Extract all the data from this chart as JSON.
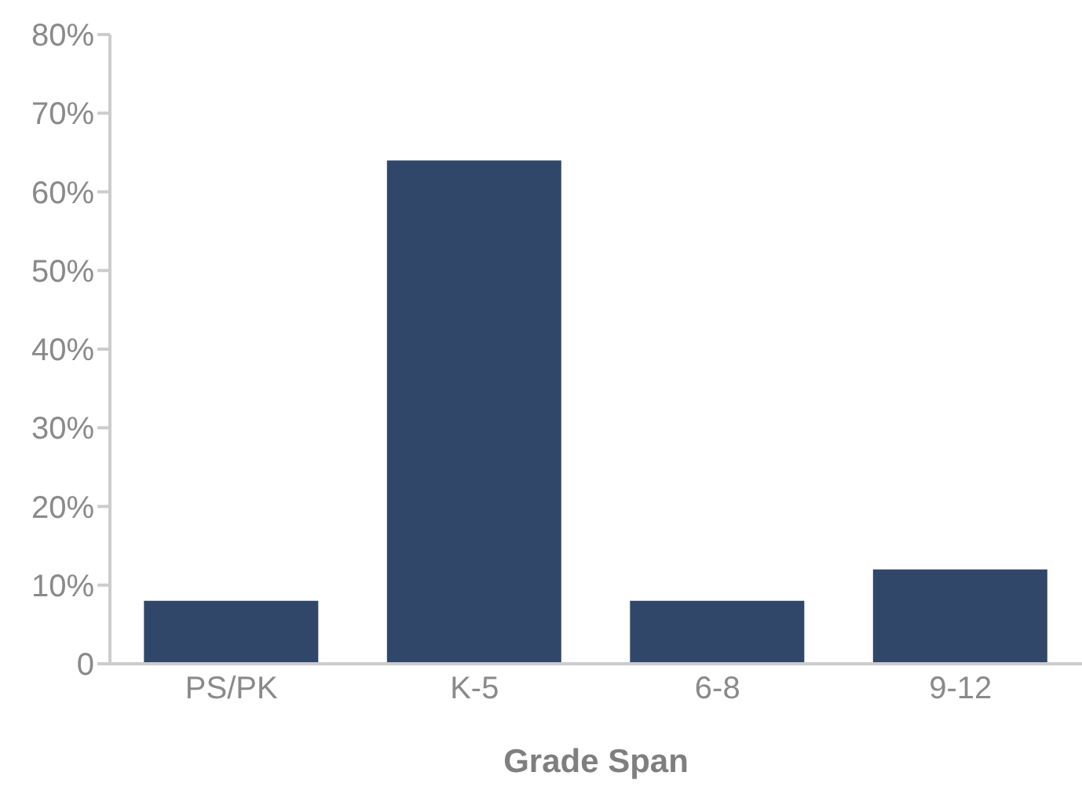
{
  "chart_data": {
    "type": "bar",
    "xlabel": "Grade Span",
    "categories": [
      "PS/PK",
      "K-5",
      "6-8",
      "9-12"
    ],
    "values": [
      8,
      64,
      8,
      12
    ],
    "color": "#31476a",
    "ylim": [
      0,
      80
    ],
    "yticks": [
      {
        "value": 0,
        "label": "0"
      },
      {
        "value": 10,
        "label": "10%"
      },
      {
        "value": 20,
        "label": "20%"
      },
      {
        "value": 30,
        "label": "30%"
      },
      {
        "value": 40,
        "label": "40%"
      },
      {
        "value": 50,
        "label": "50%"
      },
      {
        "value": 60,
        "label": "60%"
      },
      {
        "value": 70,
        "label": "70%"
      },
      {
        "value": 80,
        "label": "80%"
      }
    ],
    "grid": false
  }
}
